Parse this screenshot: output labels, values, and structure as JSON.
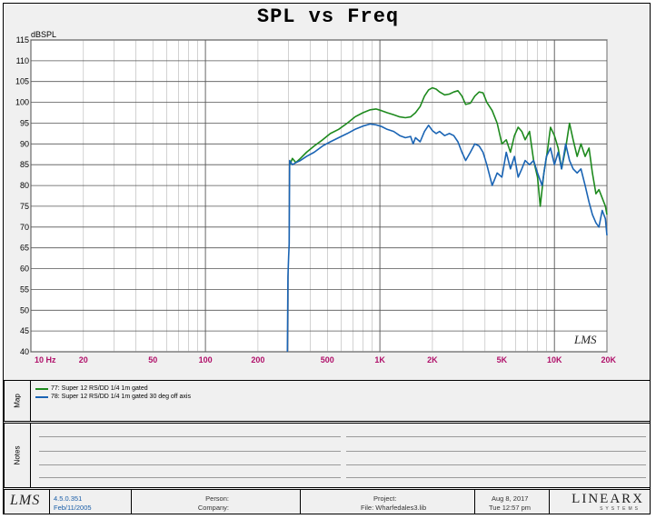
{
  "chart_data": {
    "type": "line",
    "title": "SPL vs Freq",
    "ylabel": "dBSPL",
    "xlabel": "",
    "x_scale": "log",
    "xlim": [
      10,
      20000
    ],
    "ylim": [
      40,
      115
    ],
    "grid": true,
    "legend_location": "map panel below chart",
    "y_ticks": [
      40,
      45,
      50,
      55,
      60,
      65,
      70,
      75,
      80,
      85,
      90,
      95,
      100,
      105,
      110,
      115
    ],
    "x_ticks": [
      {
        "value": 10,
        "label": "10 Hz"
      },
      {
        "value": 20,
        "label": "20"
      },
      {
        "value": 50,
        "label": "50"
      },
      {
        "value": 100,
        "label": "100"
      },
      {
        "value": 200,
        "label": "200"
      },
      {
        "value": 500,
        "label": "500"
      },
      {
        "value": 1000,
        "label": "1K"
      },
      {
        "value": 2000,
        "label": "2K"
      },
      {
        "value": 5000,
        "label": "5K"
      },
      {
        "value": 10000,
        "label": "10K"
      },
      {
        "value": 20000,
        "label": "20K"
      }
    ],
    "series": [
      {
        "name": "77: Super 12 RS/DD  1/4 1m gated",
        "color": "#1e8a1e",
        "points": [
          [
            305,
            85
          ],
          [
            315,
            86.5
          ],
          [
            330,
            85.5
          ],
          [
            350,
            86.5
          ],
          [
            380,
            88
          ],
          [
            420,
            89.5
          ],
          [
            470,
            91
          ],
          [
            520,
            92.5
          ],
          [
            580,
            93.5
          ],
          [
            650,
            95
          ],
          [
            720,
            96.5
          ],
          [
            800,
            97.5
          ],
          [
            880,
            98.2
          ],
          [
            950,
            98.4
          ],
          [
            1020,
            98
          ],
          [
            1100,
            97.5
          ],
          [
            1200,
            97
          ],
          [
            1300,
            96.5
          ],
          [
            1400,
            96.3
          ],
          [
            1500,
            96.5
          ],
          [
            1600,
            97.5
          ],
          [
            1700,
            99
          ],
          [
            1800,
            101.5
          ],
          [
            1900,
            103
          ],
          [
            2000,
            103.5
          ],
          [
            2100,
            103.2
          ],
          [
            2200,
            102.5
          ],
          [
            2350,
            101.8
          ],
          [
            2500,
            102
          ],
          [
            2650,
            102.5
          ],
          [
            2800,
            102.8
          ],
          [
            2950,
            101.5
          ],
          [
            3100,
            99.5
          ],
          [
            3300,
            99.8
          ],
          [
            3500,
            101.5
          ],
          [
            3700,
            102.5
          ],
          [
            3900,
            102.3
          ],
          [
            4100,
            100
          ],
          [
            4400,
            98
          ],
          [
            4700,
            95
          ],
          [
            5000,
            90
          ],
          [
            5300,
            91
          ],
          [
            5600,
            88
          ],
          [
            5900,
            92
          ],
          [
            6200,
            94
          ],
          [
            6500,
            93
          ],
          [
            6800,
            91
          ],
          [
            7200,
            93
          ],
          [
            7600,
            86
          ],
          [
            8000,
            82
          ],
          [
            8300,
            75
          ],
          [
            8700,
            83
          ],
          [
            9100,
            88
          ],
          [
            9500,
            94
          ],
          [
            10000,
            92
          ],
          [
            10500,
            89
          ],
          [
            11000,
            84
          ],
          [
            11600,
            89
          ],
          [
            12200,
            95
          ],
          [
            12800,
            91
          ],
          [
            13500,
            87
          ],
          [
            14200,
            90
          ],
          [
            15000,
            87
          ],
          [
            15800,
            89
          ],
          [
            16500,
            83
          ],
          [
            17300,
            78
          ],
          [
            18000,
            79
          ],
          [
            18800,
            77
          ],
          [
            19600,
            75
          ],
          [
            20000,
            73
          ]
        ]
      },
      {
        "name": "78: Super 12 RS/DD  1/4 1m gated  30 deg off axis",
        "color": "#1a64b4",
        "points": [
          [
            295,
            40
          ],
          [
            297,
            58
          ],
          [
            300,
            63
          ],
          [
            302,
            66
          ],
          [
            304,
            86
          ],
          [
            315,
            85
          ],
          [
            330,
            85.5
          ],
          [
            350,
            86
          ],
          [
            380,
            87
          ],
          [
            420,
            88
          ],
          [
            470,
            89.5
          ],
          [
            520,
            90.5
          ],
          [
            580,
            91.5
          ],
          [
            650,
            92.5
          ],
          [
            720,
            93.5
          ],
          [
            800,
            94.3
          ],
          [
            880,
            94.8
          ],
          [
            950,
            94.6
          ],
          [
            1020,
            94.2
          ],
          [
            1100,
            93.5
          ],
          [
            1200,
            93
          ],
          [
            1300,
            92
          ],
          [
            1400,
            91.5
          ],
          [
            1500,
            91.8
          ],
          [
            1550,
            90
          ],
          [
            1600,
            91.5
          ],
          [
            1700,
            90.5
          ],
          [
            1800,
            93
          ],
          [
            1900,
            94.5
          ],
          [
            2000,
            93.2
          ],
          [
            2100,
            92.5
          ],
          [
            2200,
            93
          ],
          [
            2350,
            92
          ],
          [
            2500,
            92.5
          ],
          [
            2650,
            92
          ],
          [
            2800,
            90.5
          ],
          [
            2950,
            88
          ],
          [
            3100,
            86
          ],
          [
            3300,
            88
          ],
          [
            3500,
            90
          ],
          [
            3700,
            89.5
          ],
          [
            3900,
            88
          ],
          [
            4100,
            85
          ],
          [
            4400,
            80
          ],
          [
            4700,
            83
          ],
          [
            5000,
            82
          ],
          [
            5300,
            88
          ],
          [
            5600,
            84
          ],
          [
            5900,
            87
          ],
          [
            6200,
            82
          ],
          [
            6500,
            84
          ],
          [
            6800,
            86
          ],
          [
            7200,
            85
          ],
          [
            7600,
            86
          ],
          [
            8000,
            83
          ],
          [
            8500,
            80
          ],
          [
            9000,
            87
          ],
          [
            9500,
            89
          ],
          [
            10000,
            85
          ],
          [
            10500,
            88
          ],
          [
            11000,
            84
          ],
          [
            11600,
            90
          ],
          [
            12200,
            86
          ],
          [
            12800,
            84
          ],
          [
            13500,
            83
          ],
          [
            14200,
            84
          ],
          [
            15000,
            80
          ],
          [
            15800,
            76
          ],
          [
            16500,
            73
          ],
          [
            17300,
            71
          ],
          [
            18000,
            70
          ],
          [
            18800,
            74
          ],
          [
            19600,
            72
          ],
          [
            20000,
            68
          ]
        ]
      }
    ]
  },
  "plot_logo": "LMS",
  "map_panel": {
    "tab_label": "Map",
    "entries": [
      {
        "text": "77: Super 12 RS/DD  1/4 1m gated",
        "color": "#1e8a1e"
      },
      {
        "text": "78: Super 12 RS/DD  1/4 1m gated  30 deg off axis",
        "color": "#1a64b4"
      }
    ]
  },
  "notes_panel": {
    "tab_label": "Notes"
  },
  "footer": {
    "logo": "LMS",
    "version": "4.5.0.351",
    "date_built": "Feb/11/2005",
    "person_label": "Person:",
    "company_label": "Company:",
    "project_label": "Project:",
    "file_label": "File: Wharfedales3.lib",
    "print_date": "Aug  8, 2017",
    "print_time": "Tue 12:57 pm",
    "brand": "LINEARX",
    "brand_sub": "SYSTEMS"
  }
}
